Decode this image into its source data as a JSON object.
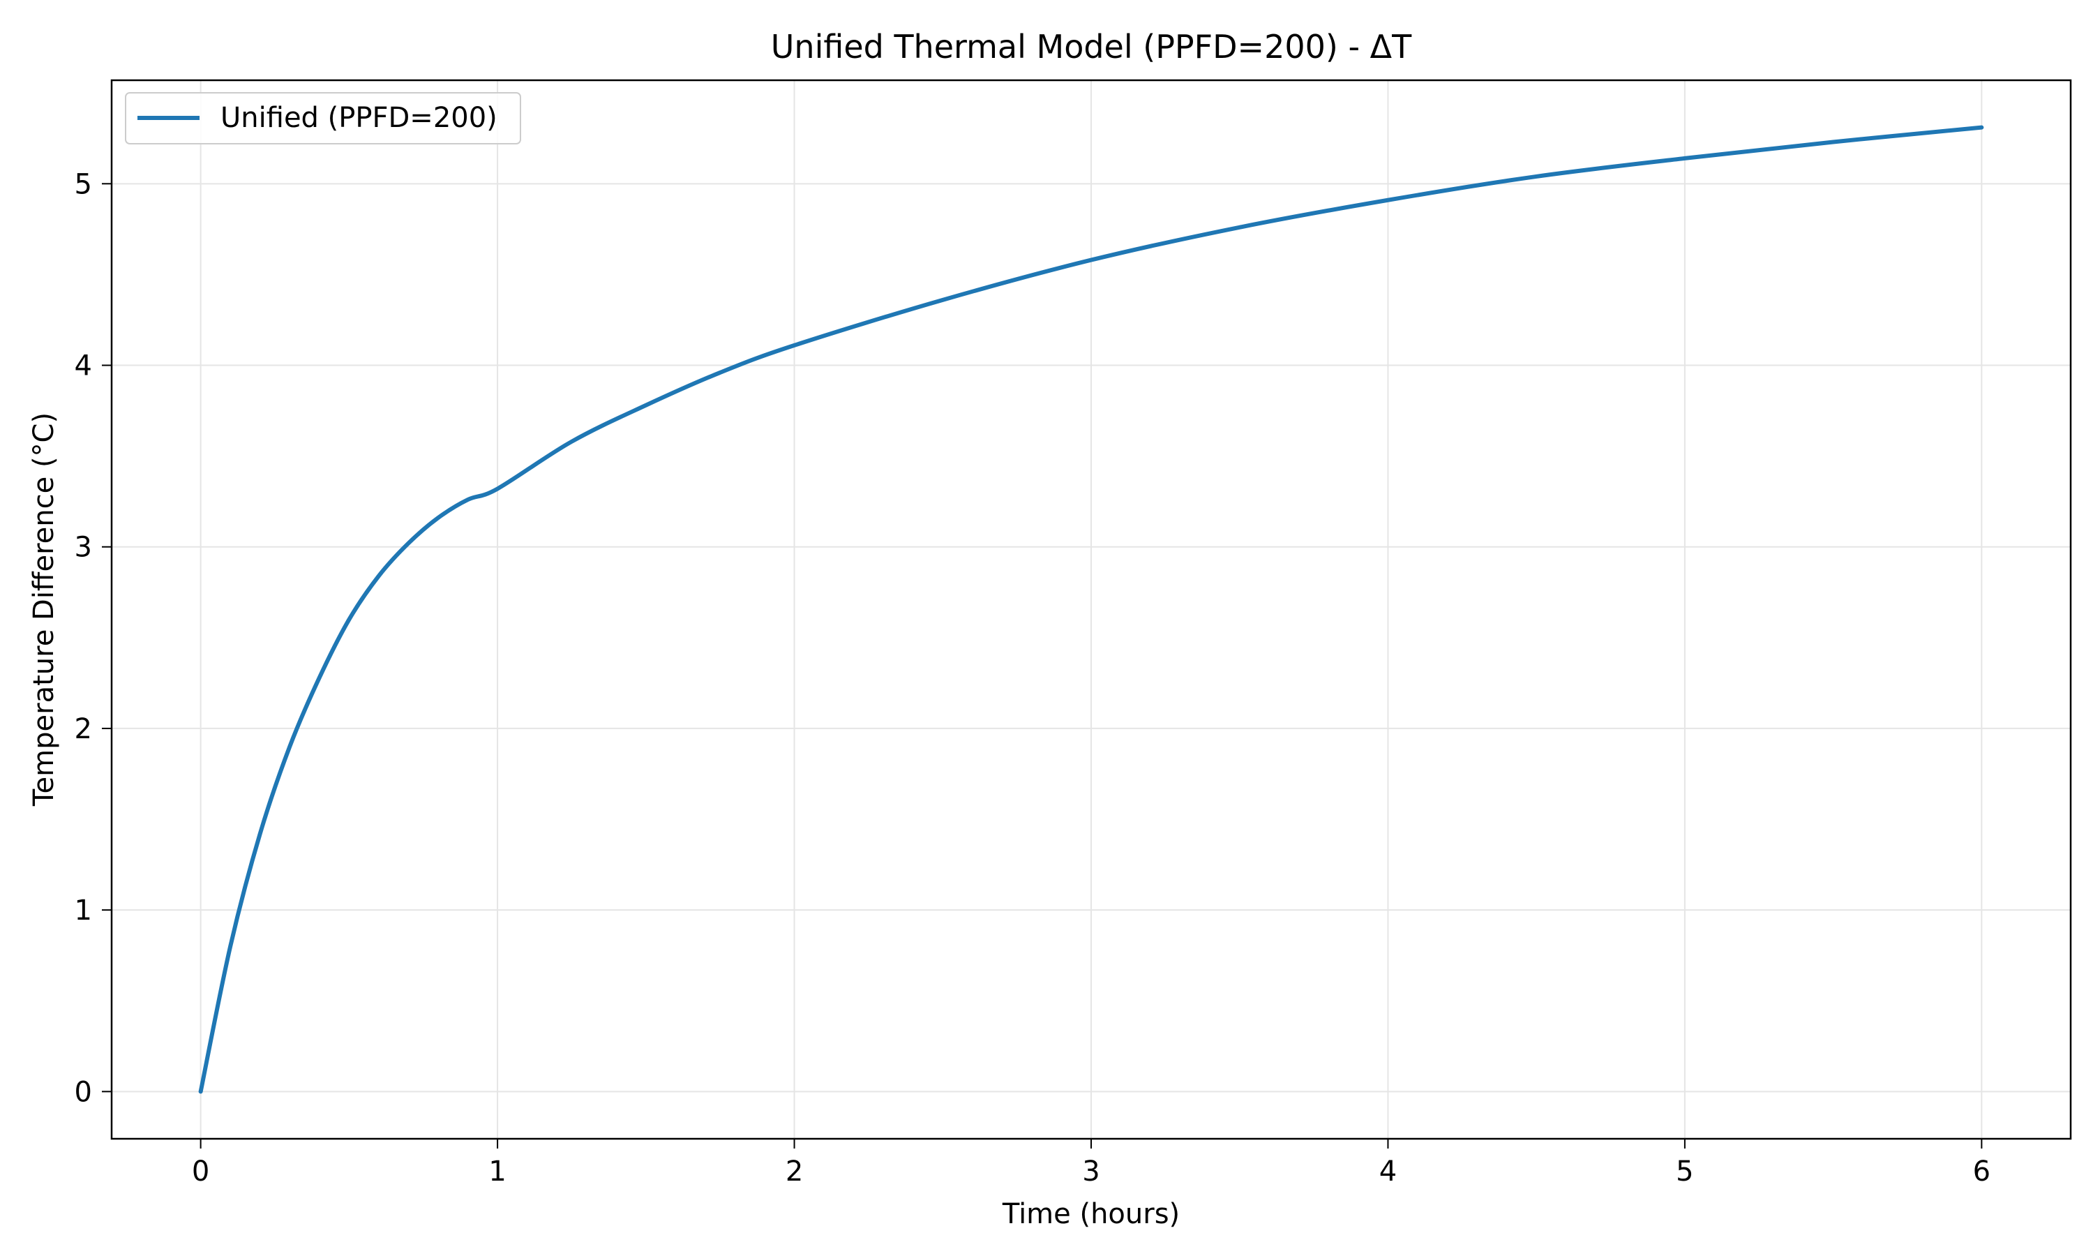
{
  "chart_data": {
    "type": "line",
    "title": "Unified Thermal Model (PPFD=200) - ΔT",
    "xlabel": "Time (hours)",
    "ylabel": "Temperature Difference (°C)",
    "xlim": [
      -0.3,
      6.3
    ],
    "ylim": [
      -0.26,
      5.57
    ],
    "xticks": [
      0,
      1,
      2,
      3,
      4,
      5,
      6
    ],
    "xtick_labels": [
      "0",
      "1",
      "2",
      "3",
      "4",
      "5",
      "6"
    ],
    "yticks": [
      0,
      1,
      2,
      3,
      4,
      5
    ],
    "ytick_labels": [
      "0",
      "1",
      "2",
      "3",
      "4",
      "5"
    ],
    "grid": true,
    "legend_position": "upper-left",
    "series": [
      {
        "name": "Unified (PPFD=200)",
        "color": "#1f77b4",
        "x": [
          0,
          0.1,
          0.2,
          0.3,
          0.4,
          0.5,
          0.6,
          0.7,
          0.8,
          0.9,
          1.0,
          1.25,
          1.5,
          1.75,
          2.0,
          2.5,
          3.0,
          3.5,
          4.0,
          4.5,
          5.0,
          5.5,
          6.0
        ],
        "y": [
          0,
          0.8,
          1.42,
          1.9,
          2.28,
          2.6,
          2.84,
          3.02,
          3.16,
          3.26,
          3.32,
          3.58,
          3.78,
          3.96,
          4.11,
          4.36,
          4.58,
          4.76,
          4.91,
          5.04,
          5.14,
          5.23,
          5.31
        ]
      }
    ]
  }
}
